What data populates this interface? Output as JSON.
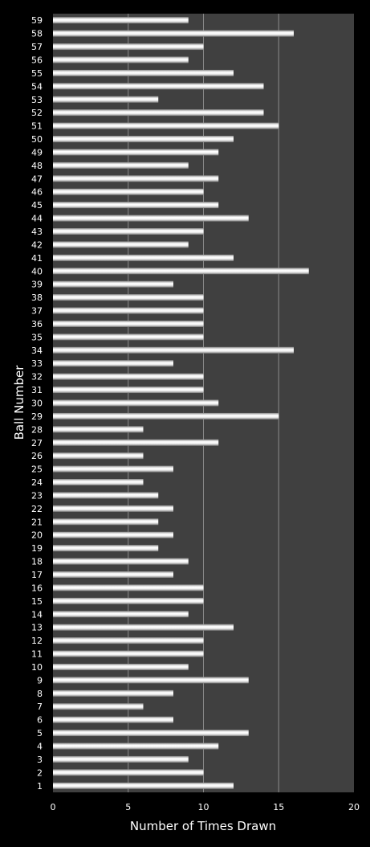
{
  "chart_data": {
    "type": "bar",
    "orientation": "horizontal",
    "title": "",
    "xlabel": "Number of Times Drawn",
    "ylabel": "Ball Number",
    "xlim": [
      0,
      20
    ],
    "xticks": [
      "0",
      "5",
      "10",
      "15",
      "20"
    ],
    "grid": true,
    "legend": "none",
    "categories": [
      "1",
      "2",
      "3",
      "4",
      "5",
      "6",
      "7",
      "8",
      "9",
      "10",
      "11",
      "12",
      "13",
      "14",
      "15",
      "16",
      "17",
      "18",
      "19",
      "20",
      "21",
      "22",
      "23",
      "24",
      "25",
      "26",
      "27",
      "28",
      "29",
      "30",
      "31",
      "32",
      "33",
      "34",
      "35",
      "36",
      "37",
      "38",
      "39",
      "40",
      "41",
      "42",
      "43",
      "44",
      "45",
      "46",
      "47",
      "48",
      "49",
      "50",
      "51",
      "52",
      "53",
      "54",
      "55",
      "56",
      "57",
      "58",
      "59"
    ],
    "values": [
      12,
      10,
      9,
      11,
      13,
      8,
      6,
      8,
      13,
      9,
      10,
      10,
      12,
      9,
      10,
      10,
      8,
      9,
      7,
      8,
      7,
      8,
      7,
      6,
      8,
      6,
      11,
      6,
      15,
      11,
      10,
      10,
      8,
      16,
      10,
      10,
      10,
      10,
      8,
      17,
      12,
      9,
      10,
      13,
      11,
      10,
      11,
      9,
      11,
      12,
      15,
      14,
      7,
      14,
      12,
      9,
      10,
      16,
      9
    ],
    "colors": {
      "background": "#000000",
      "plot_area": "#404040",
      "bar": "#e0e0e0",
      "text": "#ffffff",
      "grid": "#8a8a8a"
    }
  }
}
